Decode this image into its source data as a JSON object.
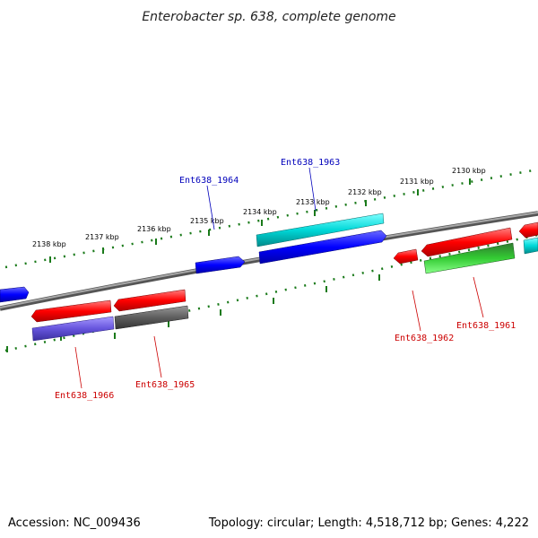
{
  "title": "Enterobacter sp. 638, complete genome",
  "footer": {
    "accession": "Accession: NC_009436",
    "summary": "Topology: circular; Length: 4,518,712 bp; Genes: 4,222"
  },
  "colors": {
    "blue": "#0000ff",
    "red": "#ff0000",
    "cyan": "#00dcdc",
    "gray": "#666666",
    "purple": "#6655dd",
    "green": "#22aa22",
    "backbone": "#808080",
    "tick": "#1a7a1a",
    "label_blue": "#0000bb",
    "label_red": "#cc0000"
  },
  "scale_labels": [
    {
      "kbp": 2138,
      "text": "2138 kbp"
    },
    {
      "kbp": 2137,
      "text": "2137 kbp"
    },
    {
      "kbp": 2136,
      "text": "2136 kbp"
    },
    {
      "kbp": 2135,
      "text": "2135 kbp"
    },
    {
      "kbp": 2134,
      "text": "2134 kbp"
    },
    {
      "kbp": 2133,
      "text": "2133 kbp"
    },
    {
      "kbp": 2132,
      "text": "2132 kbp"
    },
    {
      "kbp": 2131,
      "text": "2131 kbp"
    },
    {
      "kbp": 2130,
      "text": "2130 kbp"
    }
  ],
  "gene_labels": [
    {
      "text": "Ent638_1964",
      "color": "blue"
    },
    {
      "text": "Ent638_1963",
      "color": "blue"
    },
    {
      "text": "Ent638_1962",
      "color": "red"
    },
    {
      "text": "Ent638_1961",
      "color": "red"
    },
    {
      "text": "Ent638_1966",
      "color": "red"
    },
    {
      "text": "Ent638_1965",
      "color": "red"
    }
  ]
}
